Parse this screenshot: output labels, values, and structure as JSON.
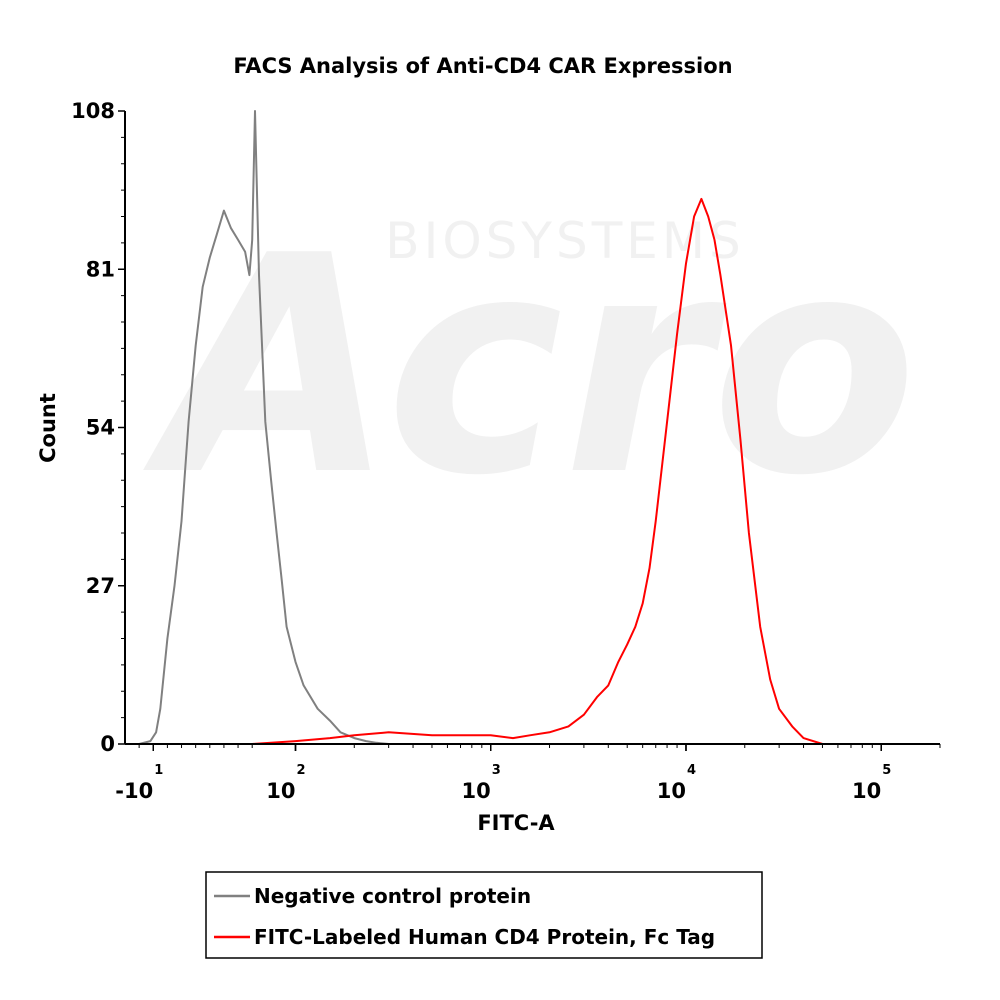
{
  "chart_data": {
    "type": "line",
    "title": "FACS Analysis of Anti-CD4 CAR Expression",
    "xlabel": "FITC-A",
    "ylabel": "Count",
    "x_scale": "biexponential",
    "xlim": [
      -30,
      200000
    ],
    "ylim": [
      0,
      108
    ],
    "y_ticks": [
      0,
      27,
      54,
      81,
      108
    ],
    "y_tick_labels": [
      "0",
      "27",
      "54",
      "81",
      "108"
    ],
    "x_ticks": [
      {
        "value": -10,
        "base": "-10",
        "exp": "1"
      },
      {
        "value": 100,
        "base": "10",
        "exp": "2"
      },
      {
        "value": 1000,
        "base": "10",
        "exp": "3"
      },
      {
        "value": 10000,
        "base": "10",
        "exp": "4"
      },
      {
        "value": 100000,
        "base": "10",
        "exp": "5"
      }
    ],
    "grid": false,
    "legend_position": "bottom",
    "series": [
      {
        "name": "Negative control protein",
        "color": "#808080",
        "x": [
          -20,
          -12,
          -8,
          -5,
          0,
          5,
          10,
          12,
          15,
          20,
          25,
          30,
          35,
          40,
          45,
          50,
          55,
          58,
          60,
          62,
          65,
          70,
          75,
          80,
          85,
          90,
          100,
          110,
          130,
          150,
          170,
          200,
          230,
          260,
          300,
          350,
          400
        ],
        "y": [
          0,
          0.5,
          2,
          6,
          18,
          27,
          38,
          45,
          55,
          68,
          78,
          83,
          87,
          91,
          88,
          86,
          84,
          80,
          86,
          108,
          80,
          55,
          45,
          36,
          28,
          20,
          14,
          10,
          6,
          4,
          2,
          1,
          0.5,
          0.2,
          0,
          0,
          0
        ]
      },
      {
        "name": "FITC-Labeled Human CD4 Protein, Fc Tag",
        "color": "#ff0000",
        "x": [
          -20,
          0,
          20,
          60,
          100,
          150,
          200,
          300,
          500,
          700,
          1000,
          1300,
          1600,
          2000,
          2500,
          3000,
          3500,
          4000,
          4500,
          5000,
          5500,
          6000,
          6500,
          7000,
          8000,
          9000,
          10000,
          11000,
          12000,
          13000,
          14000,
          15000,
          17000,
          19000,
          21000,
          24000,
          27000,
          30000,
          35000,
          40000,
          50000,
          70000
        ],
        "y": [
          0,
          0,
          0,
          0,
          0.5,
          1,
          1.5,
          2,
          1.5,
          1.5,
          1.5,
          1,
          1.5,
          2,
          3,
          5,
          8,
          10,
          14,
          17,
          20,
          24,
          30,
          38,
          55,
          70,
          82,
          90,
          93,
          90,
          86,
          80,
          68,
          52,
          36,
          20,
          11,
          6,
          3,
          1,
          0,
          0
        ]
      }
    ]
  },
  "watermark": {
    "brand_text": "BIOSYSTEMS",
    "logo_text": "Acro"
  }
}
